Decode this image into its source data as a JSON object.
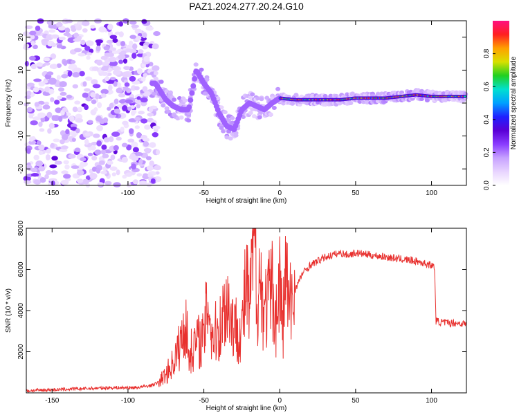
{
  "title": "PAZ1.2024.277.20.24.G10",
  "colors": {
    "snr_line": "#e8302e",
    "colormap": [
      "#ffffff",
      "#e8d4ff",
      "#c7a2ff",
      "#8a3cff",
      "#5a00d6",
      "#2020ff",
      "#00a0ff",
      "#00e0d0",
      "#20d020",
      "#d8e000",
      "#ffa000",
      "#ff2020",
      "#ff1080"
    ]
  },
  "chart_data": [
    {
      "type": "heatmap",
      "xlabel": "Height of straight line (km)",
      "ylabel": "Frequency (Hz)",
      "xlim": [
        -167,
        123
      ],
      "ylim": [
        -25,
        25
      ],
      "x_ticks": [
        -150,
        -100,
        -50,
        0,
        50,
        100
      ],
      "y_ticks": [
        -20,
        -10,
        0,
        10,
        20
      ],
      "colorbar": {
        "label": "Normalized spectral amplitude",
        "range": [
          0,
          1
        ],
        "ticks": [
          "0.0",
          "0.2",
          "0.4",
          "0.6",
          "0.8"
        ]
      },
      "ridge": {
        "x": [
          -82,
          -75,
          -70,
          -65,
          -60,
          -55,
          -50,
          -45,
          -40,
          -35,
          -30,
          -25,
          -20,
          -15,
          -10,
          -5,
          0,
          10,
          20,
          30,
          40,
          50,
          60,
          70,
          80,
          90,
          100,
          110,
          123
        ],
        "y": [
          6,
          1,
          -1,
          -2,
          -2,
          10,
          6,
          3,
          -3,
          -7,
          -8,
          -2,
          0,
          -1,
          -2,
          0,
          1.5,
          1,
          1,
          1,
          1,
          1.5,
          1.5,
          1.5,
          2,
          2.5,
          2,
          2,
          2
        ]
      }
    },
    {
      "type": "line",
      "xlabel": "Height of straight line (km)",
      "ylabel": "SNR (10 * v/v)",
      "xlim": [
        -167,
        123
      ],
      "ylim": [
        0,
        8000
      ],
      "x_ticks": [
        -150,
        -100,
        -50,
        0,
        50,
        100
      ],
      "y_ticks": [
        2000,
        4000,
        6000,
        8000
      ],
      "series": [
        {
          "x": [
            -167,
            -150,
            -130,
            -110,
            -95,
            -85,
            -80,
            -75,
            -70,
            -65,
            -62,
            -60,
            -55,
            -50,
            -47,
            -45,
            -40,
            -35,
            -30,
            -25,
            -22,
            -20,
            -18,
            -16,
            -15,
            -14,
            -10,
            -5,
            -2,
            0,
            2,
            4,
            6,
            8,
            10,
            15,
            20,
            25,
            30,
            35,
            40,
            45,
            50,
            60,
            70,
            80,
            90,
            95,
            100,
            102,
            103,
            105,
            110,
            115,
            123
          ],
          "values": [
            100,
            150,
            200,
            250,
            250,
            350,
            500,
            900,
            1500,
            2500,
            3500,
            1800,
            2500,
            2600,
            4800,
            2800,
            3000,
            4500,
            3200,
            3000,
            5400,
            3800,
            6500,
            8000,
            4200,
            5800,
            4000,
            5000,
            3500,
            5600,
            3000,
            6200,
            4000,
            4500,
            5000,
            5800,
            6200,
            6400,
            6600,
            6700,
            6800,
            6700,
            6800,
            6700,
            6600,
            6500,
            6400,
            6300,
            6200,
            6100,
            3500,
            3450,
            3400,
            3400,
            3350
          ]
        }
      ]
    }
  ]
}
